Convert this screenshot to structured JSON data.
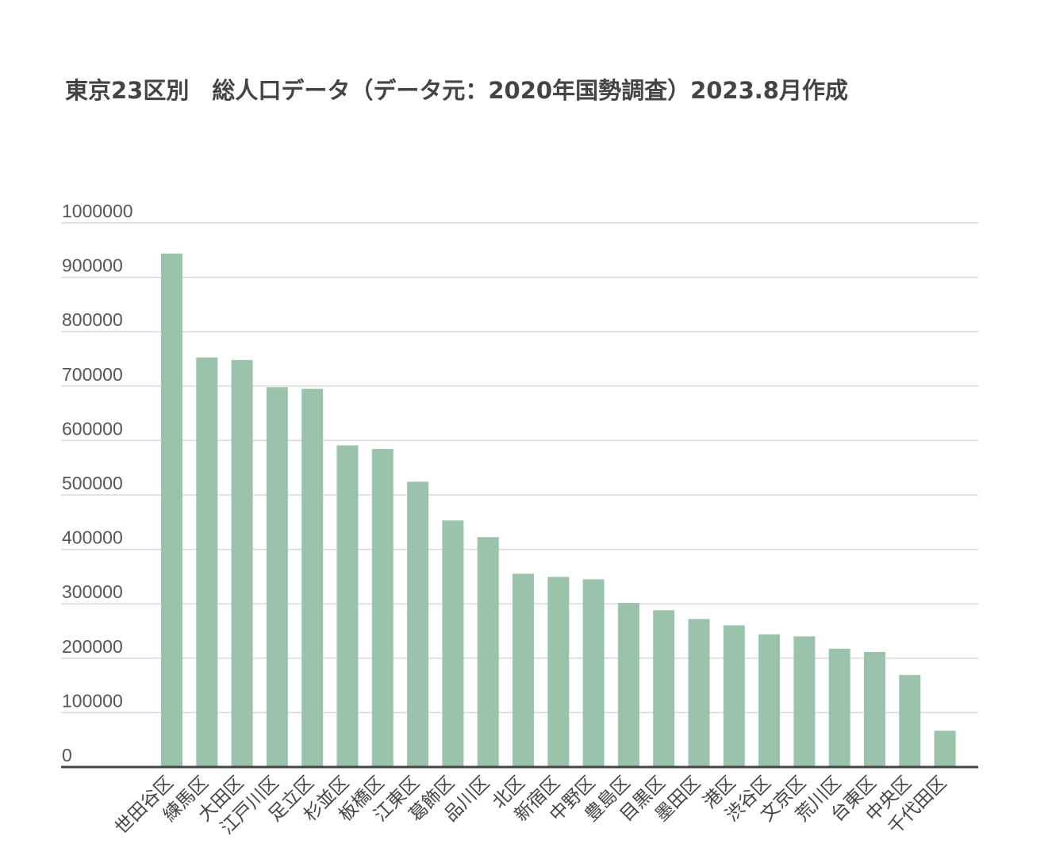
{
  "chart_data": {
    "type": "bar",
    "title": "東京23区別　総人口データ（データ元：2020年国勢調査）2023.8月作成",
    "xlabel": "",
    "ylabel": "",
    "ylim": [
      0,
      1000000
    ],
    "yticks": [
      "0",
      "100000",
      "200000",
      "300000",
      "400000",
      "500000",
      "600000",
      "700000",
      "800000",
      "900000",
      "1000000"
    ],
    "grid": true,
    "bar_color": "#9bc2ab",
    "categories": [
      "世田谷区",
      "練馬区",
      "大田区",
      "江戸川区",
      "足立区",
      "杉並区",
      "板橋区",
      "江東区",
      "葛飾区",
      "品川区",
      "北区",
      "新宿区",
      "中野区",
      "豊島区",
      "目黒区",
      "墨田区",
      "港区",
      "渋谷区",
      "文京区",
      "荒川区",
      "台東区",
      "中央区",
      "千代田区"
    ],
    "values": [
      943664,
      752608,
      748081,
      697932,
      695043,
      591108,
      584483,
      524310,
      453093,
      422488,
      355213,
      349385,
      344880,
      301599,
      288088,
      272085,
      260486,
      243883,
      240069,
      217475,
      211444,
      169179,
      66680
    ]
  }
}
